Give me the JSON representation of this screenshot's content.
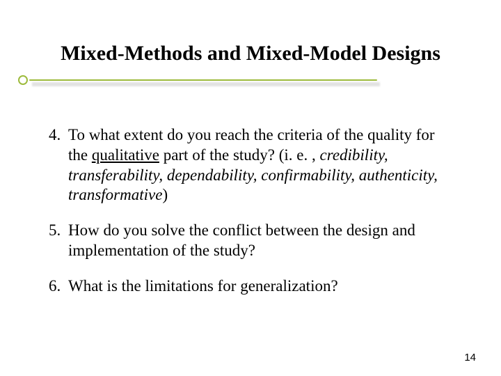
{
  "title": "Mixed-Methods and Mixed-Model Designs",
  "accent_color": "#9dbb3c",
  "shadow_color": "#cfcfcf",
  "text_color": "#000000",
  "background_color": "#ffffff",
  "title_fontsize": 30,
  "body_fontsize": 23,
  "items": [
    {
      "number": "4.",
      "pre": "To what extent do you reach the criteria of the quality for the ",
      "underlined": "qualitative",
      "mid": " part of the study? (i. e. , ",
      "italic": "credibility, transferability, dependability, confirmability, authenticity, transformative",
      "post": ")"
    },
    {
      "number": "5.",
      "text": "How do you solve the conflict between the design and implementation of the study?"
    },
    {
      "number": "6.",
      "text": "What is the limitations for generalization?"
    }
  ],
  "page_number": "14"
}
